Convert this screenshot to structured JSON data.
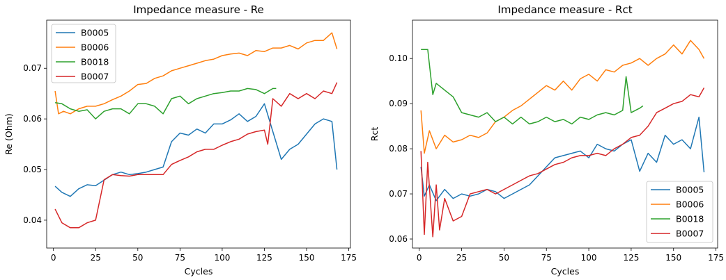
{
  "chart_data": [
    {
      "type": "line",
      "title": "Impedance measure - Re",
      "xlabel": "Cycles",
      "ylabel": "Re (Ohm)",
      "xlim": [
        -4,
        176
      ],
      "ylim": [
        0.0345,
        0.0795
      ],
      "xticks": [
        0,
        25,
        50,
        75,
        100,
        125,
        150,
        175
      ],
      "yticks": [
        0.04,
        0.05,
        0.06,
        0.07
      ],
      "ytick_labels": [
        "0.04",
        "0.05",
        "0.06",
        "0.07"
      ],
      "grid": false,
      "legend_position": "upper-left",
      "series": [
        {
          "name": "B0005",
          "color": "#1f77b4",
          "x": [
            1,
            5,
            10,
            15,
            20,
            25,
            30,
            35,
            40,
            45,
            50,
            55,
            60,
            65,
            70,
            75,
            80,
            85,
            90,
            95,
            100,
            105,
            110,
            115,
            120,
            125,
            130,
            135,
            140,
            145,
            150,
            155,
            160,
            165,
            168
          ],
          "y": [
            0.0467,
            0.0455,
            0.0447,
            0.0462,
            0.047,
            0.0468,
            0.0479,
            0.049,
            0.0495,
            0.049,
            0.0492,
            0.0495,
            0.05,
            0.0505,
            0.0555,
            0.0572,
            0.0568,
            0.058,
            0.0572,
            0.059,
            0.059,
            0.0598,
            0.061,
            0.0595,
            0.0605,
            0.063,
            0.0575,
            0.052,
            0.054,
            0.055,
            0.057,
            0.059,
            0.06,
            0.0595,
            0.05
          ]
        },
        {
          "name": "B0006",
          "color": "#ff7f0e",
          "x": [
            1,
            3,
            6,
            10,
            15,
            20,
            25,
            30,
            35,
            40,
            45,
            50,
            55,
            60,
            65,
            70,
            75,
            80,
            85,
            90,
            95,
            100,
            105,
            110,
            115,
            120,
            125,
            130,
            135,
            140,
            145,
            150,
            155,
            160,
            165,
            168
          ],
          "y": [
            0.0655,
            0.061,
            0.0615,
            0.061,
            0.062,
            0.0625,
            0.0625,
            0.063,
            0.0638,
            0.0645,
            0.0655,
            0.0668,
            0.067,
            0.068,
            0.0685,
            0.0695,
            0.07,
            0.0705,
            0.071,
            0.0715,
            0.0718,
            0.0725,
            0.0728,
            0.073,
            0.0725,
            0.0735,
            0.0733,
            0.074,
            0.074,
            0.0745,
            0.0738,
            0.075,
            0.0755,
            0.0755,
            0.077,
            0.0738
          ]
        },
        {
          "name": "B0018",
          "color": "#2ca02c",
          "x": [
            1,
            5,
            10,
            15,
            20,
            25,
            30,
            35,
            40,
            45,
            50,
            55,
            60,
            65,
            70,
            75,
            80,
            85,
            90,
            95,
            100,
            105,
            110,
            115,
            120,
            125,
            130,
            132
          ],
          "y": [
            0.0632,
            0.063,
            0.062,
            0.0615,
            0.0618,
            0.06,
            0.0615,
            0.062,
            0.062,
            0.061,
            0.063,
            0.063,
            0.0625,
            0.061,
            0.064,
            0.0645,
            0.063,
            0.064,
            0.0645,
            0.065,
            0.0652,
            0.0655,
            0.0655,
            0.066,
            0.0658,
            0.065,
            0.066,
            0.066
          ]
        },
        {
          "name": "B0007",
          "color": "#d62728",
          "x": [
            1,
            5,
            10,
            15,
            20,
            25,
            30,
            35,
            40,
            45,
            50,
            55,
            60,
            65,
            70,
            75,
            80,
            85,
            90,
            95,
            100,
            105,
            110,
            115,
            120,
            125,
            127,
            130,
            135,
            140,
            145,
            150,
            155,
            160,
            165,
            168
          ],
          "y": [
            0.0422,
            0.0395,
            0.0385,
            0.0385,
            0.0395,
            0.04,
            0.048,
            0.049,
            0.0488,
            0.0487,
            0.049,
            0.049,
            0.049,
            0.049,
            0.051,
            0.0518,
            0.0525,
            0.0535,
            0.054,
            0.054,
            0.0548,
            0.0555,
            0.056,
            0.057,
            0.0575,
            0.0578,
            0.055,
            0.064,
            0.0625,
            0.065,
            0.064,
            0.065,
            0.064,
            0.0655,
            0.065,
            0.0672
          ]
        }
      ]
    },
    {
      "type": "line",
      "title": "Impedance measure - Rct",
      "xlabel": "Cycles",
      "ylabel": "Rct",
      "xlim": [
        -4,
        176
      ],
      "ylim": [
        0.058,
        0.1085
      ],
      "xticks": [
        0,
        25,
        50,
        75,
        100,
        125,
        150,
        175
      ],
      "yticks": [
        0.06,
        0.07,
        0.08,
        0.09,
        0.1
      ],
      "ytick_labels": [
        "0.06",
        "0.07",
        "0.08",
        "0.09",
        "0.10"
      ],
      "grid": false,
      "legend_position": "lower-right",
      "series": [
        {
          "name": "B0005",
          "color": "#1f77b4",
          "x": [
            1,
            3,
            6,
            10,
            15,
            20,
            25,
            30,
            35,
            40,
            45,
            50,
            55,
            60,
            65,
            70,
            75,
            80,
            85,
            90,
            95,
            100,
            105,
            110,
            115,
            120,
            125,
            130,
            135,
            140,
            145,
            150,
            155,
            160,
            165,
            168
          ],
          "y": [
            0.076,
            0.0695,
            0.072,
            0.0685,
            0.071,
            0.069,
            0.07,
            0.0695,
            0.07,
            0.071,
            0.0705,
            0.069,
            0.07,
            0.071,
            0.072,
            0.074,
            0.076,
            0.078,
            0.0785,
            0.079,
            0.0795,
            0.078,
            0.081,
            0.08,
            0.0795,
            0.081,
            0.082,
            0.075,
            0.079,
            0.077,
            0.083,
            0.081,
            0.082,
            0.08,
            0.087,
            0.0748
          ]
        },
        {
          "name": "B0006",
          "color": "#ff7f0e",
          "x": [
            1,
            3,
            6,
            10,
            15,
            20,
            25,
            30,
            35,
            40,
            45,
            50,
            55,
            60,
            65,
            70,
            75,
            80,
            85,
            90,
            95,
            100,
            105,
            110,
            115,
            120,
            125,
            130,
            135,
            140,
            145,
            150,
            155,
            160,
            165,
            168
          ],
          "y": [
            0.0885,
            0.079,
            0.084,
            0.08,
            0.083,
            0.0815,
            0.082,
            0.083,
            0.0825,
            0.0835,
            0.086,
            0.087,
            0.0885,
            0.0895,
            0.091,
            0.0925,
            0.094,
            0.093,
            0.095,
            0.093,
            0.0955,
            0.0965,
            0.095,
            0.0975,
            0.097,
            0.0985,
            0.099,
            0.1,
            0.0985,
            0.1,
            0.101,
            0.103,
            0.101,
            0.104,
            0.102,
            0.1
          ]
        },
        {
          "name": "B0018",
          "color": "#2ca02c",
          "x": [
            1,
            5,
            8,
            10,
            15,
            20,
            25,
            30,
            35,
            40,
            45,
            50,
            55,
            60,
            65,
            70,
            75,
            80,
            85,
            90,
            95,
            100,
            105,
            110,
            115,
            120,
            122,
            125,
            130,
            132
          ],
          "y": [
            0.102,
            0.102,
            0.092,
            0.0945,
            0.093,
            0.0915,
            0.088,
            0.0875,
            0.087,
            0.088,
            0.086,
            0.087,
            0.0855,
            0.087,
            0.0855,
            0.086,
            0.087,
            0.086,
            0.0865,
            0.0855,
            0.087,
            0.0865,
            0.0875,
            0.088,
            0.0875,
            0.0885,
            0.096,
            0.088,
            0.089,
            0.0895
          ]
        },
        {
          "name": "B0007",
          "color": "#d62728",
          "x": [
            1,
            3,
            5,
            8,
            10,
            12,
            15,
            20,
            25,
            30,
            35,
            40,
            45,
            50,
            55,
            60,
            65,
            70,
            75,
            80,
            85,
            90,
            95,
            100,
            105,
            110,
            115,
            120,
            125,
            130,
            135,
            140,
            145,
            150,
            155,
            160,
            165,
            168
          ],
          "y": [
            0.0795,
            0.061,
            0.077,
            0.0605,
            0.072,
            0.062,
            0.069,
            0.064,
            0.065,
            0.07,
            0.0705,
            0.071,
            0.07,
            0.071,
            0.072,
            0.073,
            0.074,
            0.0745,
            0.0755,
            0.0765,
            0.077,
            0.078,
            0.0785,
            0.0785,
            0.079,
            0.0785,
            0.08,
            0.081,
            0.0825,
            0.083,
            0.085,
            0.088,
            0.089,
            0.09,
            0.0905,
            0.092,
            0.0915,
            0.0935
          ]
        }
      ]
    }
  ]
}
